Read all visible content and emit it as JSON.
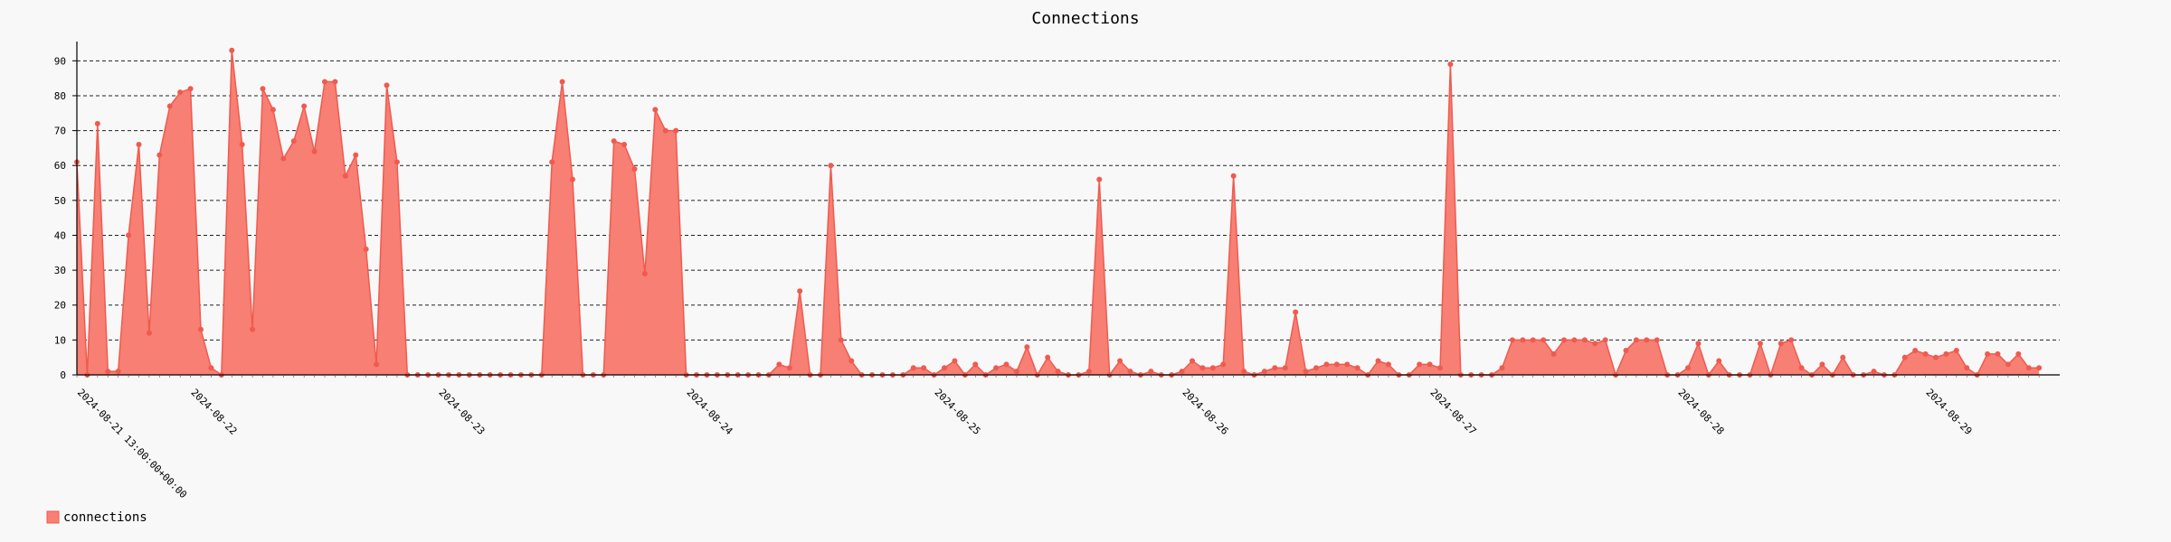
{
  "chart_data": {
    "type": "area",
    "title": "Connections",
    "ylim": [
      0,
      95
    ],
    "yticks": [
      0,
      10,
      20,
      30,
      40,
      50,
      60,
      70,
      80,
      90
    ],
    "grid": true,
    "legend_position": "bottom-left",
    "x_start": "2024-08-21 13:00",
    "x_step_hours": 1,
    "xticks": [
      {
        "label": "2024-08-21 13:00:00+00:00",
        "hour": 0
      },
      {
        "label": "2024-08-22",
        "hour": 11
      },
      {
        "label": "2024-08-23",
        "hour": 35
      },
      {
        "label": "2024-08-24",
        "hour": 59
      },
      {
        "label": "2024-08-25",
        "hour": 83
      },
      {
        "label": "2024-08-26",
        "hour": 107
      },
      {
        "label": "2024-08-27",
        "hour": 131
      },
      {
        "label": "2024-08-28",
        "hour": 155
      },
      {
        "label": "2024-08-29",
        "hour": 179
      }
    ],
    "series": [
      {
        "name": "connections",
        "color": "#f05a4f",
        "fill": "#f77f74",
        "values": [
          61,
          0,
          72,
          1,
          1,
          40,
          66,
          12,
          63,
          77,
          81,
          82,
          13,
          2,
          0,
          93,
          66,
          13,
          82,
          76,
          62,
          67,
          77,
          64,
          84,
          84,
          57,
          63,
          36,
          3,
          83,
          61,
          0,
          0,
          0,
          0,
          0,
          0,
          0,
          0,
          0,
          0,
          0,
          0,
          0,
          0,
          61,
          84,
          56,
          0,
          0,
          0,
          67,
          66,
          59,
          29,
          76,
          70,
          70,
          0,
          0,
          0,
          0,
          0,
          0,
          0,
          0,
          0,
          3,
          2,
          24,
          0,
          0,
          60,
          10,
          4,
          0,
          0,
          0,
          0,
          0,
          2,
          2,
          0,
          2,
          4,
          0,
          3,
          0,
          2,
          3,
          1,
          8,
          0,
          5,
          1,
          0,
          0,
          1,
          56,
          0,
          4,
          1,
          0,
          1,
          0,
          0,
          1,
          4,
          2,
          2,
          3,
          57,
          1,
          0,
          1,
          2,
          2,
          18,
          1,
          2,
          3,
          3,
          3,
          2,
          0,
          4,
          3,
          0,
          0,
          3,
          3,
          2,
          89,
          0,
          0,
          0,
          0,
          2,
          10,
          10,
          10,
          10,
          6,
          10,
          10,
          10,
          9,
          10,
          0,
          7,
          10,
          10,
          10,
          0,
          0,
          2,
          9,
          0,
          4,
          0,
          0,
          0,
          9,
          0,
          9,
          10,
          2,
          0,
          3,
          0,
          5,
          0,
          0,
          1,
          0,
          0,
          5,
          7,
          6,
          5,
          6,
          7,
          2,
          0,
          6,
          6,
          3,
          6,
          2,
          2
        ]
      }
    ]
  }
}
